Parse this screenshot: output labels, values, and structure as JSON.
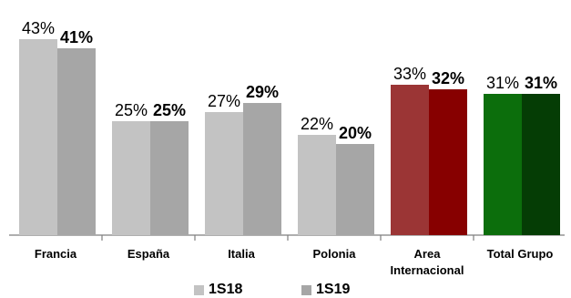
{
  "chart_data": {
    "type": "bar",
    "categories": [
      "Francia",
      "España",
      "Italia",
      "Polonia",
      "Area Internacional",
      "Total Grupo"
    ],
    "category_lines": [
      [
        "Francia"
      ],
      [
        "España"
      ],
      [
        "Italia"
      ],
      [
        "Polonia"
      ],
      [
        "Area",
        "Internacional"
      ],
      [
        "Total Grupo"
      ]
    ],
    "series": [
      {
        "name": "1S18",
        "values": [
          43,
          25,
          27,
          22,
          33,
          31
        ],
        "labels": [
          "43%",
          "25%",
          "27%",
          "22%",
          "33%",
          "31%"
        ],
        "colors": [
          "#c3c3c3",
          "#c3c3c3",
          "#c3c3c3",
          "#c3c3c3",
          "#9b3535",
          "#0c6e0c"
        ]
      },
      {
        "name": "1S19",
        "values": [
          41,
          25,
          29,
          20,
          32,
          31
        ],
        "labels": [
          "41%",
          "25%",
          "29%",
          "20%",
          "32%",
          "31%"
        ],
        "colors": [
          "#a6a6a6",
          "#a6a6a6",
          "#a6a6a6",
          "#a6a6a6",
          "#870000",
          "#053d05"
        ]
      }
    ],
    "legend": {
      "position": "bottom",
      "items": [
        {
          "label": "1S18",
          "color": "#c3c3c3"
        },
        {
          "label": "1S19",
          "color": "#a6a6a6"
        }
      ]
    },
    "ylim": [
      0,
      50
    ],
    "grid": false,
    "title": "",
    "xlabel": "",
    "ylabel": ""
  }
}
